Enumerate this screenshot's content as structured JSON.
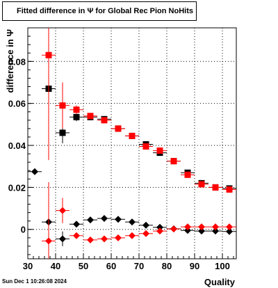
{
  "canvas": {
    "title": "Fitted difference in  Ψ  for Global Rec Pion NoHits",
    "timestamp": "Sun Dec  1 10:26:08 2024"
  },
  "chart_data": {
    "type": "scatter",
    "title": "Fitted difference in  Ψ  for Global Rec Pion NoHits",
    "xlabel": "Quality",
    "ylabel": "difference in  Ψ",
    "xlim": [
      30,
      105
    ],
    "ylim": [
      -0.014,
      0.096
    ],
    "grid": true,
    "xticks": [
      30,
      40,
      50,
      60,
      70,
      80,
      90,
      100
    ],
    "xtick_labels": [
      "30",
      "40",
      "50",
      "60",
      "70",
      "80",
      "90",
      "100"
    ],
    "yticks": [
      0,
      0.02,
      0.04,
      0.06,
      0.08
    ],
    "ytick_labels": [
      "0",
      "0.02",
      "0.04",
      "0.06",
      "0.08"
    ],
    "series": [
      {
        "marker": "square",
        "color": "#000000",
        "x": [
          37.5,
          42.5,
          47.5,
          52.5,
          57.5,
          62.5,
          67.5,
          72.5,
          77.5,
          82.5,
          87.5,
          92.5,
          97.5,
          102.5
        ],
        "y": [
          0.067,
          0.046,
          0.0535,
          0.0535,
          0.0525,
          0.048,
          0.0445,
          0.0405,
          0.0365,
          0.0325,
          0.027,
          0.022,
          0.02,
          0.0195
        ],
        "err": [
          0.027,
          0.005,
          0.002,
          0.0015,
          0.0015,
          0.001,
          0.001,
          0.001,
          0.001,
          0.001,
          0.001,
          0.001,
          0.001,
          0.001
        ]
      },
      {
        "marker": "square",
        "color": "#ff0000",
        "x": [
          37.5,
          42.5,
          47.5,
          52.5,
          57.5,
          62.5,
          67.5,
          72.5,
          77.5,
          82.5,
          87.5,
          92.5,
          97.5,
          102.5
        ],
        "y": [
          0.083,
          0.059,
          0.057,
          0.054,
          0.052,
          0.048,
          0.0445,
          0.0395,
          0.0375,
          0.0325,
          0.026,
          0.0215,
          0.02,
          0.019
        ],
        "err": [
          0.05,
          0.011,
          0.002,
          0.0015,
          0.0015,
          0.001,
          0.001,
          0.001,
          0.001,
          0.001,
          0.001,
          0.001,
          0.001,
          0.001
        ]
      },
      {
        "marker": "diamond",
        "color": "#000000",
        "x": [
          32.5,
          37.5,
          42.5,
          47.5,
          52.5,
          57.5,
          62.5,
          67.5,
          72.5,
          77.5,
          82.5,
          87.5,
          92.5,
          97.5,
          102.5
        ],
        "y": [
          0.0275,
          0.0035,
          -0.0045,
          0.0025,
          0.0045,
          0.0052,
          0.0048,
          0.0035,
          0.002,
          0.001,
          0.0003,
          -0.0005,
          -0.0008,
          -0.0008,
          -0.001
        ],
        "err": [
          0.0,
          0.0,
          0.0035,
          0.001,
          0.001,
          0.0008,
          0.0008,
          0.0008,
          0.0008,
          0.0008,
          0.0008,
          0.0008,
          0.0008,
          0.0008,
          0.0008
        ]
      },
      {
        "marker": "diamond",
        "color": "#ff0000",
        "x": [
          37.5,
          42.5,
          47.5,
          52.5,
          57.5,
          62.5,
          67.5,
          72.5,
          77.5,
          82.5,
          87.5,
          92.5,
          97.5,
          102.5
        ],
        "y": [
          -0.0055,
          0.009,
          -0.003,
          -0.005,
          -0.0045,
          -0.004,
          -0.003,
          -0.002,
          -0.0008,
          0.0002,
          0.0012,
          0.0012,
          0.0012,
          0.0012
        ],
        "err": [
          0.028,
          0.006,
          0.001,
          0.001,
          0.0008,
          0.0008,
          0.0008,
          0.0008,
          0.0008,
          0.0008,
          0.0008,
          0.0008,
          0.0008,
          0.0008
        ]
      }
    ]
  }
}
